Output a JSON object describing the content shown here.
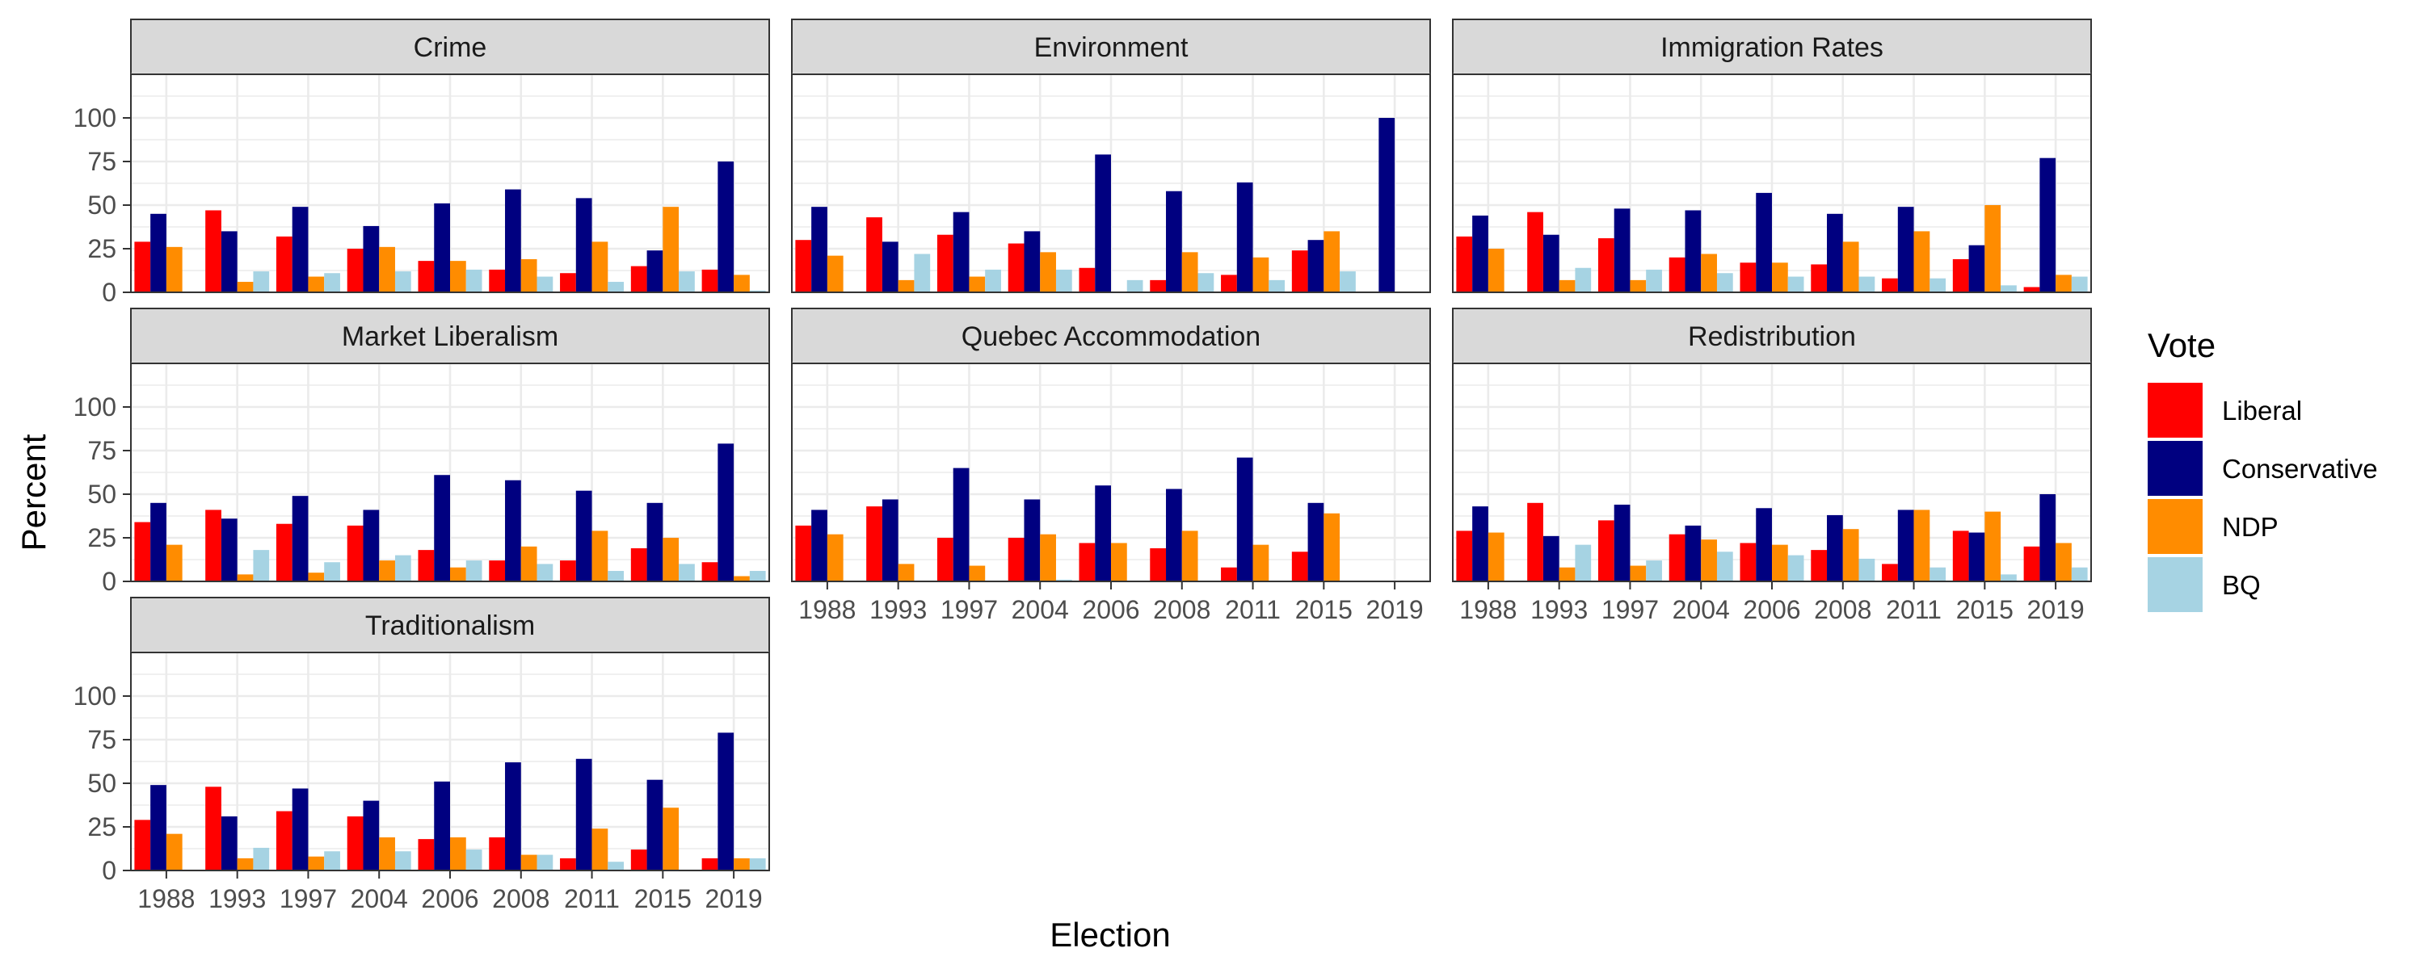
{
  "chart_data": {
    "type": "bar",
    "xlabel": "Election",
    "ylabel": "Percent",
    "ylim": [
      0,
      125
    ],
    "yticks": [
      0,
      25,
      50,
      75,
      100
    ],
    "grid": true,
    "legend": {
      "title": "Vote",
      "placement": "right"
    },
    "categories": [
      "1988",
      "1993",
      "1997",
      "2004",
      "2006",
      "2008",
      "2011",
      "2015",
      "2019"
    ],
    "series_names": [
      "Liberal",
      "Conservative",
      "NDP",
      "BQ"
    ],
    "colors": [
      "#ff0000",
      "#000080",
      "#ff8c00",
      "#a6d3e3"
    ],
    "panels": [
      {
        "title": "Crime",
        "values": [
          [
            29,
            47,
            32,
            25,
            18,
            13,
            11,
            15,
            13
          ],
          [
            45,
            35,
            49,
            38,
            51,
            59,
            54,
            24,
            75
          ],
          [
            26,
            6,
            9,
            26,
            18,
            19,
            29,
            49,
            10
          ],
          [
            0,
            12,
            11,
            12,
            13,
            9,
            6,
            12,
            1
          ]
        ]
      },
      {
        "title": "Environment",
        "values": [
          [
            30,
            43,
            33,
            28,
            14,
            7,
            10,
            24,
            0
          ],
          [
            49,
            29,
            46,
            35,
            79,
            58,
            63,
            30,
            100
          ],
          [
            21,
            7,
            9,
            23,
            0,
            23,
            20,
            35,
            0
          ],
          [
            0,
            22,
            13,
            13,
            7,
            11,
            7,
            12,
            0
          ]
        ]
      },
      {
        "title": "Immigration Rates",
        "values": [
          [
            32,
            46,
            31,
            20,
            17,
            16,
            8,
            19,
            3
          ],
          [
            44,
            33,
            48,
            47,
            57,
            45,
            49,
            27,
            77
          ],
          [
            25,
            7,
            7,
            22,
            17,
            29,
            35,
            50,
            10
          ],
          [
            0,
            14,
            13,
            11,
            9,
            9,
            8,
            4,
            9
          ]
        ]
      },
      {
        "title": "Market Liberalism",
        "values": [
          [
            34,
            41,
            33,
            32,
            18,
            12,
            12,
            19,
            11
          ],
          [
            45,
            36,
            49,
            41,
            61,
            58,
            52,
            45,
            79
          ],
          [
            21,
            4,
            5,
            12,
            8,
            20,
            29,
            25,
            3
          ],
          [
            0,
            18,
            11,
            15,
            12,
            10,
            6,
            10,
            6
          ]
        ]
      },
      {
        "title": "Quebec Accommodation",
        "values": [
          [
            32,
            43,
            25,
            25,
            22,
            19,
            8,
            17,
            0
          ],
          [
            41,
            47,
            65,
            47,
            55,
            53,
            71,
            45,
            0
          ],
          [
            27,
            10,
            9,
            27,
            22,
            29,
            21,
            39,
            0
          ],
          [
            0,
            0,
            0,
            1,
            0,
            0,
            0,
            0,
            0
          ]
        ]
      },
      {
        "title": "Redistribution",
        "values": [
          [
            29,
            45,
            35,
            27,
            22,
            18,
            10,
            29,
            20
          ],
          [
            43,
            26,
            44,
            32,
            42,
            38,
            41,
            28,
            50
          ],
          [
            28,
            8,
            9,
            24,
            21,
            30,
            41,
            40,
            22
          ],
          [
            0,
            21,
            12,
            17,
            15,
            13,
            8,
            4,
            8
          ]
        ]
      },
      {
        "title": "Traditionalism",
        "values": [
          [
            29,
            48,
            34,
            31,
            18,
            19,
            7,
            12,
            7
          ],
          [
            49,
            31,
            47,
            40,
            51,
            62,
            64,
            52,
            79
          ],
          [
            21,
            7,
            8,
            19,
            19,
            9,
            24,
            36,
            7
          ],
          [
            0,
            13,
            11,
            11,
            12,
            9,
            5,
            0,
            7
          ]
        ]
      }
    ]
  }
}
